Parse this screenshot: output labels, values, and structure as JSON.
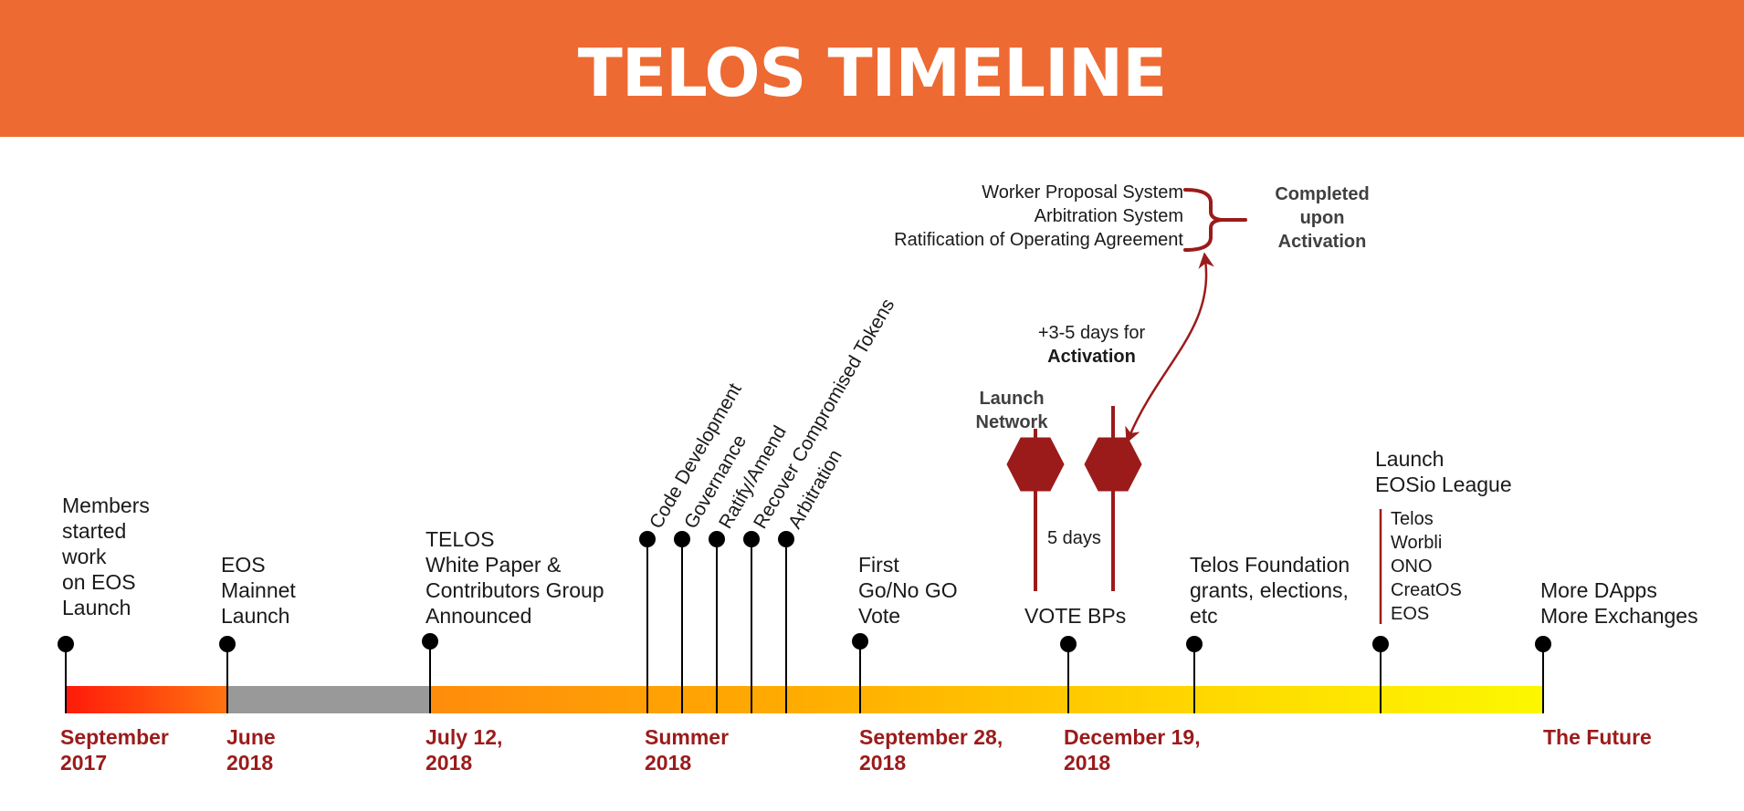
{
  "title": "TELOS TIMELINE",
  "milestones": [
    {
      "date": "September\n2017",
      "desc": "Members\nstarted\nwork\non EOS\nLaunch"
    },
    {
      "date": "June\n2018",
      "desc": "EOS\nMainnet\nLaunch"
    },
    {
      "date": "July 12,\n2018",
      "desc": "TELOS\nWhite Paper &\nContributors Group\nAnnounced"
    },
    {
      "date": "Summer\n2018",
      "topics": [
        "Code Development",
        "Governance",
        "Ratify/Amend",
        "Recover Compromised Tokens",
        "Arbitration"
      ]
    },
    {
      "date": "September 28,\n2018",
      "desc": "First\nGo/No GO\nVote"
    },
    {
      "date": "December 19,\n2018",
      "desc": "VOTE BPs"
    },
    {
      "desc": "Telos Foundation\ngrants, elections,\netc"
    },
    {
      "desc": "Launch\nEOSio League",
      "list": "Telos\nWorbli\nONO\nCreatOS\nEOS"
    },
    {
      "date": "The Future",
      "desc": "More DApps\nMore Exchanges"
    }
  ],
  "launch_network": "Launch\nNetwork",
  "five_days": "5 days",
  "activation": {
    "prefix": "+3-5 days for",
    "label": "Activation"
  },
  "completed_items": [
    "Worker Proposal System",
    "Arbitration System",
    "Ratification of Operating Agreement"
  ],
  "completed_label": "Completed\nupon\nActivation",
  "colors": {
    "header": "#ee6a33",
    "accent": "#9b1b1b",
    "pin": "#000000"
  }
}
